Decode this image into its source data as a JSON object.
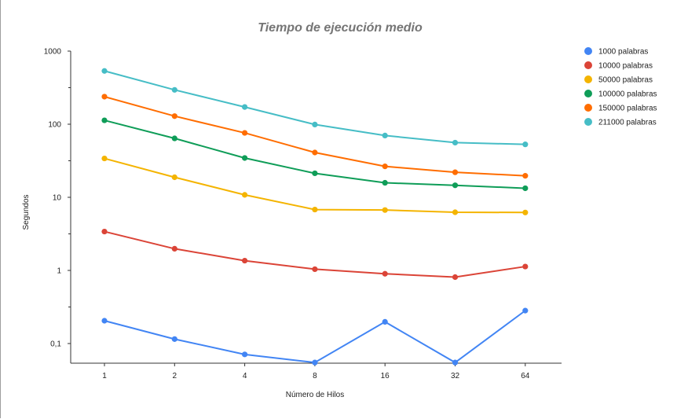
{
  "chart_data": {
    "type": "line",
    "title": "Tiempo de ejecución medio",
    "xlabel": "Número de Hilos",
    "ylabel": "Segundos",
    "y_scale": "log",
    "ylim": [
      0.055,
      1000
    ],
    "x": [
      "1",
      "2",
      "4",
      "8",
      "16",
      "32",
      "64"
    ],
    "y_ticks": [
      {
        "value": 1000,
        "label": "1000"
      },
      {
        "value": 100,
        "label": "100"
      },
      {
        "value": 10,
        "label": "10"
      },
      {
        "value": 1,
        "label": "1"
      },
      {
        "value": 0.1,
        "label": "0,1"
      }
    ],
    "legend_position": "right",
    "grid": false,
    "series": [
      {
        "name": "1000 palabras",
        "color": "#4285f4",
        "values": [
          0.205,
          0.115,
          0.071,
          0.055,
          0.198,
          0.055,
          0.282
        ]
      },
      {
        "name": "10000 palabras",
        "color": "#db4437",
        "values": [
          3.4,
          1.98,
          1.36,
          1.04,
          0.9,
          0.81,
          1.13
        ]
      },
      {
        "name": "50000 palabras",
        "color": "#f4b400",
        "values": [
          34,
          18.8,
          10.8,
          6.8,
          6.7,
          6.25,
          6.2
        ]
      },
      {
        "name": "100000 palabras",
        "color": "#0f9d58",
        "values": [
          113,
          64,
          34.5,
          21.3,
          15.8,
          14.6,
          13.3
        ]
      },
      {
        "name": "150000 palabras",
        "color": "#ff6d00",
        "values": [
          238,
          129,
          76,
          41,
          26.5,
          22,
          19.7
        ]
      },
      {
        "name": "211000 palabras",
        "color": "#46bdc6",
        "values": [
          535,
          295,
          172,
          99,
          70,
          56,
          53
        ]
      }
    ]
  }
}
